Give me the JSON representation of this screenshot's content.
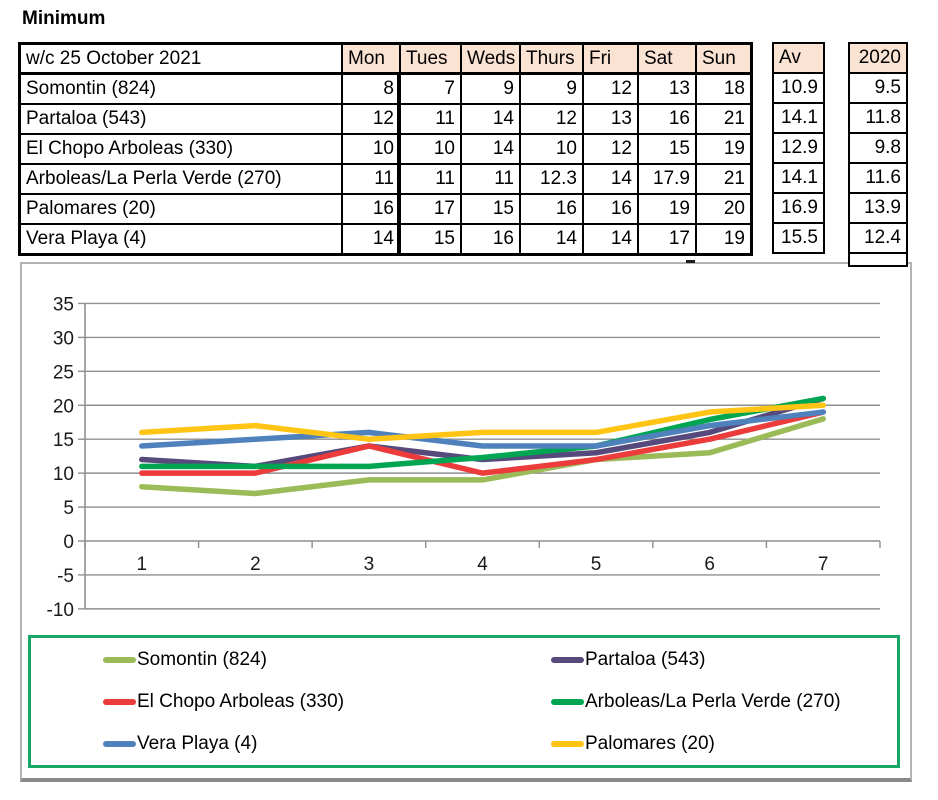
{
  "title": "Minimum",
  "table": {
    "week_label": "w/c 25 October 2021",
    "day_headers": [
      "Mon",
      "Tues",
      "Weds",
      "Thurs",
      "Fri",
      "Sat",
      "Sun"
    ],
    "av_header": "Av",
    "year_header": "2020",
    "rows": [
      {
        "location": "Somontin (824)",
        "values": [
          "8",
          "7",
          "9",
          "9",
          "12",
          "13",
          "18"
        ],
        "av": "10.9",
        "prev": "9.5"
      },
      {
        "location": "Partaloa (543)",
        "values": [
          "12",
          "11",
          "14",
          "12",
          "13",
          "16",
          "21"
        ],
        "av": "14.1",
        "prev": "11.8"
      },
      {
        "location": "El Chopo Arboleas (330)",
        "values": [
          "10",
          "10",
          "14",
          "10",
          "12",
          "15",
          "19"
        ],
        "av": "12.9",
        "prev": "9.8"
      },
      {
        "location": "Arboleas/La Perla Verde (270)",
        "values": [
          "11",
          "11",
          "11",
          "12.3",
          "14",
          "17.9",
          "21"
        ],
        "av": "14.1",
        "prev": "11.6"
      },
      {
        "location": "Palomares (20)",
        "values": [
          "16",
          "17",
          "15",
          "16",
          "16",
          "19",
          "20"
        ],
        "av": "16.9",
        "prev": "13.9"
      },
      {
        "location": "Vera Playa (4)",
        "values": [
          "14",
          "15",
          "16",
          "14",
          "14",
          "17",
          "19"
        ],
        "av": "15.5",
        "prev": "12.4"
      }
    ]
  },
  "chart_data": {
    "type": "line",
    "x": [
      1,
      2,
      3,
      4,
      5,
      6,
      7
    ],
    "xticklabels": [
      "1",
      "2",
      "3",
      "4",
      "5",
      "6",
      "7"
    ],
    "yticks": [
      35,
      30,
      25,
      20,
      15,
      10,
      5,
      0,
      -5,
      -10
    ],
    "ylim": [
      -10,
      35
    ],
    "grid": true,
    "legend_position": "bottom",
    "series": [
      {
        "name": "Somontin (824)",
        "color": "#9BBB59",
        "values": [
          8,
          7,
          9,
          9,
          12,
          13,
          18
        ]
      },
      {
        "name": "Partaloa (543)",
        "color": "#56497B",
        "values": [
          12,
          11,
          14,
          12,
          13,
          16,
          21
        ]
      },
      {
        "name": "El Chopo Arboleas (330)",
        "color": "#EC3B3B",
        "values": [
          10,
          10,
          14,
          10,
          12,
          15,
          19
        ]
      },
      {
        "name": "Arboleas/La Perla Verde (270)",
        "color": "#00A551",
        "values": [
          11,
          11,
          11,
          12.3,
          14,
          17.9,
          21
        ]
      },
      {
        "name": "Vera Playa (4)",
        "color": "#4F81BD",
        "values": [
          14,
          15,
          16,
          14,
          14,
          17,
          19
        ]
      },
      {
        "name": "Palomares (20)",
        "color": "#FFC414",
        "values": [
          16,
          17,
          15,
          16,
          16,
          19,
          20
        ]
      }
    ]
  },
  "colors": {
    "header_fill": "#FBE3D4",
    "legend_border": "#17A767",
    "grid_line": "#8F8F8F",
    "table_border": "#000000"
  }
}
